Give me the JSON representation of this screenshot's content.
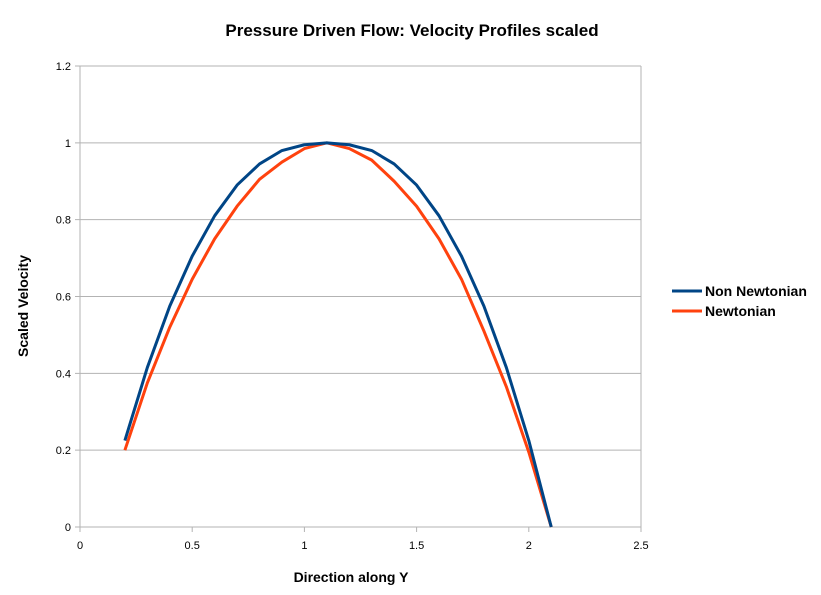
{
  "chart_data": {
    "type": "line",
    "title": "Pressure Driven Flow: Velocity Profiles scaled",
    "xlabel": "Direction along Y",
    "ylabel": "Scaled Velocity",
    "xlim": [
      0,
      2.5
    ],
    "ylim": [
      0,
      1.2
    ],
    "xticks": [
      "0",
      "0.5",
      "1",
      "1.5",
      "2",
      "2.5"
    ],
    "yticks": [
      "0",
      "0.2",
      "0.4",
      "0.6",
      "0.8",
      "1",
      "1.2"
    ],
    "grid": "horizontal",
    "legend_position": "right",
    "x": [
      0.2,
      0.3,
      0.4,
      0.5,
      0.6,
      0.7,
      0.8,
      0.9,
      1.0,
      1.1,
      1.2,
      1.3,
      1.4,
      1.5,
      1.6,
      1.7,
      1.8,
      1.9,
      2.0,
      2.1
    ],
    "series": [
      {
        "name": "Non Newtonian",
        "color": "#004586",
        "values": [
          0.225,
          0.415,
          0.575,
          0.705,
          0.81,
          0.89,
          0.945,
          0.98,
          0.995,
          1.0,
          0.995,
          0.98,
          0.945,
          0.89,
          0.81,
          0.705,
          0.575,
          0.415,
          0.225,
          0.0
        ]
      },
      {
        "name": "Newtonian",
        "color": "#ff420e",
        "values": [
          0.2,
          0.375,
          0.52,
          0.645,
          0.75,
          0.835,
          0.905,
          0.95,
          0.985,
          1.0,
          0.985,
          0.955,
          0.9,
          0.835,
          0.75,
          0.645,
          0.51,
          0.365,
          0.195,
          0.0
        ]
      }
    ]
  }
}
